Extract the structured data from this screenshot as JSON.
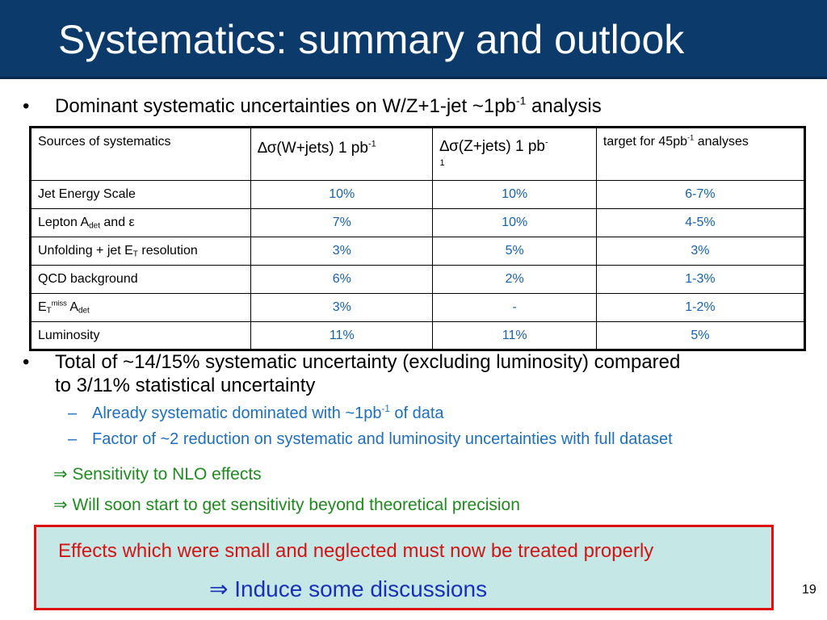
{
  "title": "Systematics: summary and outlook",
  "bullet_symbol": "•",
  "bullet1": {
    "text_before": "Dominant systematic uncertainties on W/Z+1-jet ~1pb",
    "sup": "-1",
    "text_after": " analysis"
  },
  "table": {
    "header": {
      "col1": "Sources of systematics",
      "col2_prefix": "∆σ(W+jets) 1 pb",
      "col2_sup": "-1",
      "col3_prefix": "∆σ(Z+jets) 1 pb",
      "col3_sup": "-",
      "col3_wrap": "1",
      "col4_prefix": "target for 45pb",
      "col4_sup": "-1",
      "col4_suffix": " analyses"
    },
    "rows": [
      {
        "src": "Jet Energy Scale",
        "w": "10%",
        "z": "10%",
        "target": "6-7%"
      },
      {
        "src_main": "Lepton A",
        "src_sub": "det",
        "src_tail": " and ε",
        "w": "7%",
        "z": "10%",
        "target": "4-5%"
      },
      {
        "src_main": "Unfolding + jet E",
        "src_sub": "T",
        "src_tail": " resolution",
        "w": "3%",
        "z": "5%",
        "target": "3%"
      },
      {
        "src": "QCD background",
        "w": "6%",
        "z": "2%",
        "target": "1-3%"
      },
      {
        "src_main": "E",
        "src_sub": "T",
        "src_sup": "miss",
        "src_tail": " A",
        "src_sub2": "det",
        "w": "3%",
        "z": "-",
        "target": "1-2%"
      },
      {
        "src": "Luminosity",
        "w": "11%",
        "z": "11%",
        "target": "5%"
      }
    ]
  },
  "bullet2": {
    "line1": "Total of ~14/15% systematic uncertainty (excluding luminosity) compared",
    "line2": "to 3/11% statistical uncertainty"
  },
  "dash_symbol": "–",
  "sub_items": [
    {
      "text_before": "Already systematic dominated with ~1pb",
      "sup": "-1",
      "text_after": " of data"
    },
    {
      "text": "Factor of ~2 reduction on systematic and luminosity uncertainties with full dataset"
    }
  ],
  "arrow_symbol": "⇒",
  "arrow_items": [
    "Sensitivity to NLO effects",
    "Will soon start to get sensitivity beyond theoretical precision"
  ],
  "callout": {
    "line1": "Effects which were small and neglected must now be treated properly",
    "line2": "Induce some discussions"
  },
  "page_number": "19",
  "colors": {
    "title_bg": "#0b3a6b",
    "values": "#1560b0",
    "sub_items": "#1d6fc0",
    "arrows": "#1f8a1f",
    "callout_bg": "#c5e8e6",
    "callout_border": "#e01010",
    "callout_text1": "#d41414",
    "callout_text2": "#1a2fb8"
  }
}
